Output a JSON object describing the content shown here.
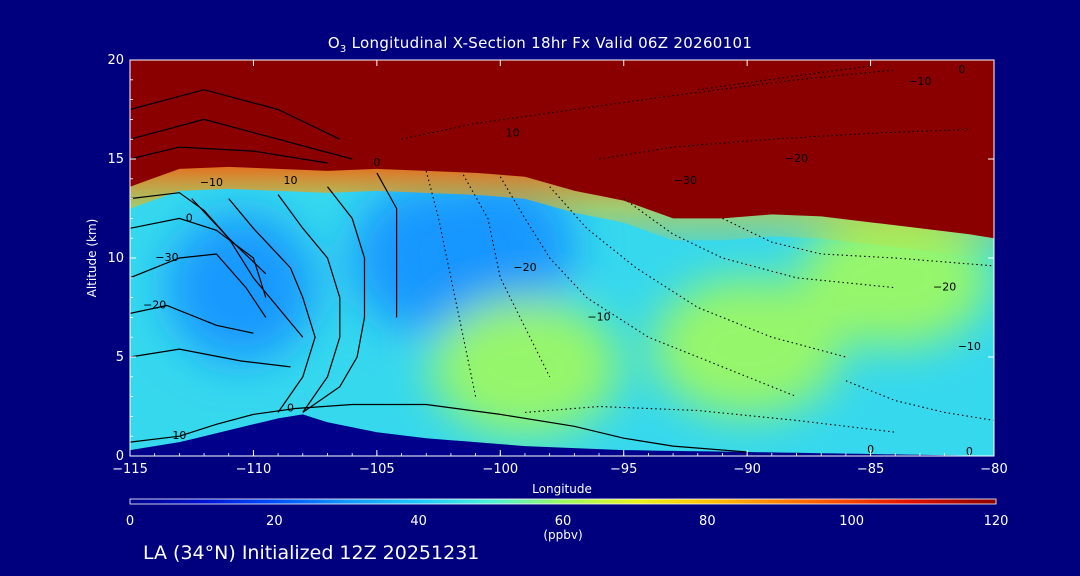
{
  "header": {
    "title_species": "O",
    "title_subscript": "3",
    "title_rest": " Longitudinal X-Section 18hr  Fx Valid 06Z 20260101"
  },
  "footer": {
    "text": "LA (34°N) Initialized 12Z 20251231"
  },
  "chart_data": {
    "type": "heatmap",
    "title": "O3 Longitudinal X-Section 18hr  Fx Valid 06Z 20260101",
    "xlabel": "Longitude",
    "ylabel": "Altitude (km)",
    "xlim": [
      -115,
      -80
    ],
    "ylim": [
      0,
      20
    ],
    "x_ticks": [
      -115,
      -110,
      -105,
      -100,
      -95,
      -90,
      -85,
      -80
    ],
    "x_tick_labels": [
      "−115",
      "−110",
      "−105",
      "−100",
      "−95",
      "−90",
      "−85",
      "−80"
    ],
    "y_ticks": [
      0,
      5,
      10,
      15,
      20
    ],
    "y_tick_labels": [
      "0",
      "5",
      "10",
      "15",
      "20"
    ],
    "colorbar": {
      "label": "(ppbv)",
      "ticks": [
        0,
        20,
        40,
        60,
        80,
        100,
        120
      ],
      "range": [
        0,
        120
      ]
    },
    "tropopause_height_km": [
      [
        -115,
        13.6
      ],
      [
        -113,
        14.5
      ],
      [
        -111,
        14.6
      ],
      [
        -109,
        14.5
      ],
      [
        -107,
        14.4
      ],
      [
        -105,
        14.5
      ],
      [
        -103,
        14.4
      ],
      [
        -101,
        14.3
      ],
      [
        -99,
        14.1
      ],
      [
        -97,
        13.4
      ],
      [
        -95,
        12.9
      ],
      [
        -93,
        12.0
      ],
      [
        -91,
        12.0
      ],
      [
        -89,
        12.2
      ],
      [
        -87,
        12.1
      ],
      [
        -85,
        11.8
      ],
      [
        -83,
        11.5
      ],
      [
        -81,
        11.2
      ],
      [
        -80,
        11.0
      ]
    ],
    "terrain_height_km": [
      [
        -115,
        0.3
      ],
      [
        -113,
        0.7
      ],
      [
        -111,
        1.3
      ],
      [
        -109,
        1.9
      ],
      [
        -108,
        2.1
      ],
      [
        -107,
        1.7
      ],
      [
        -105,
        1.2
      ],
      [
        -103,
        0.9
      ],
      [
        -101,
        0.7
      ],
      [
        -99,
        0.5
      ],
      [
        -97,
        0.4
      ],
      [
        -95,
        0.3
      ],
      [
        -90,
        0.2
      ],
      [
        -85,
        0.1
      ],
      [
        -80,
        0.0
      ]
    ],
    "ozone_core_ppbv": [
      {
        "lon": -110.5,
        "alt": 8.5,
        "value": 24
      },
      {
        "lon": -103,
        "alt": 10,
        "value": 28
      },
      {
        "lon": -100,
        "alt": 10.5,
        "value": 25
      },
      {
        "lon": -99,
        "alt": 4.5,
        "value": 58
      },
      {
        "lon": -90,
        "alt": 5.5,
        "value": 54
      },
      {
        "lon": -84,
        "alt": 9,
        "value": 56
      }
    ],
    "contour_labels": [
      {
        "text": "0",
        "lon": -112.6,
        "alt": 12.0
      },
      {
        "text": "-30",
        "lon": -113.5,
        "alt": 10.0
      },
      {
        "text": "-20",
        "lon": -114.0,
        "alt": 7.6
      },
      {
        "text": "-10",
        "lon": -111.7,
        "alt": 13.8
      },
      {
        "text": "10",
        "lon": -108.5,
        "alt": 13.9
      },
      {
        "text": "0",
        "lon": -105.0,
        "alt": 14.8
      },
      {
        "text": "10",
        "lon": -99.5,
        "alt": 16.3
      },
      {
        "text": "-10",
        "lon": -83.0,
        "alt": 18.9
      },
      {
        "text": "0",
        "lon": -81.3,
        "alt": 19.5
      },
      {
        "text": "-20",
        "lon": -88.0,
        "alt": 15.0
      },
      {
        "text": "-30",
        "lon": -92.5,
        "alt": 13.9
      },
      {
        "text": "-20",
        "lon": -99.0,
        "alt": 9.5
      },
      {
        "text": "-10",
        "lon": -96.0,
        "alt": 7.0
      },
      {
        "text": "-20",
        "lon": -82.0,
        "alt": 8.5
      },
      {
        "text": "-10",
        "lon": -81.0,
        "alt": 5.5
      },
      {
        "text": "0",
        "lon": -108.5,
        "alt": 2.4
      },
      {
        "text": "10",
        "lon": -113.0,
        "alt": 1.0
      },
      {
        "text": "0",
        "lon": -85.0,
        "alt": 0.3
      },
      {
        "text": "0",
        "lon": -81.0,
        "alt": 0.2
      }
    ]
  }
}
